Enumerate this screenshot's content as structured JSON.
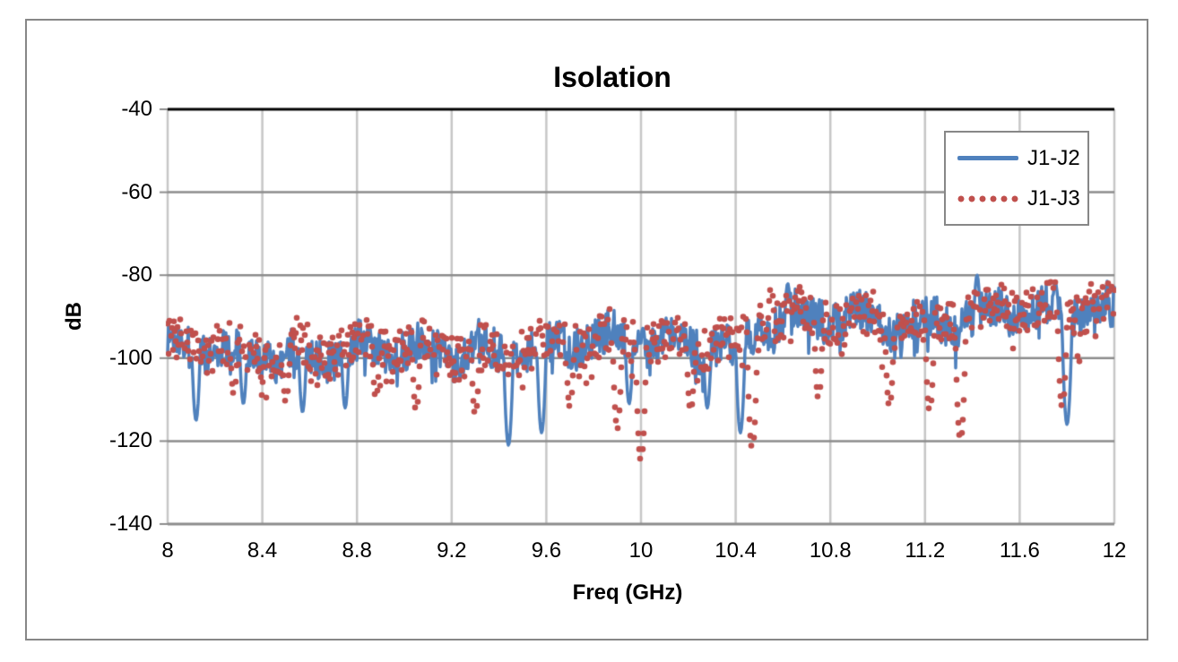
{
  "window": {
    "background_color": "#ffffff",
    "frame_border_color": "#878787"
  },
  "chart_data": {
    "type": "line",
    "title": "Isolation",
    "xlabel": "Freq (GHz)",
    "ylabel": "dB",
    "xlim": [
      8,
      12
    ],
    "ylim": [
      -140,
      -40
    ],
    "xtick_values": [
      8,
      8.4,
      8.8,
      9.2,
      9.6,
      10,
      10.4,
      10.8,
      11.2,
      11.6,
      12
    ],
    "xtick_labels": [
      "8",
      "8.4",
      "8.8",
      "9.2",
      "9.6",
      "10",
      "10.4",
      "10.8",
      "11.2",
      "11.6",
      "12"
    ],
    "ytick_values": [
      -40,
      -60,
      -80,
      -100,
      -120,
      -140
    ],
    "ytick_labels": [
      "-40",
      "-60",
      "-80",
      "-100",
      "-120",
      "-140"
    ],
    "grid": true,
    "grid_color_horizontal": "#8c8c8c",
    "grid_color_vertical": "#c6c6c6",
    "plot_top_border_color": "#000000",
    "legend": {
      "position": "top-right",
      "entries": [
        "J1-J2",
        "J1-J3"
      ]
    },
    "series": [
      {
        "name": "J1-J2",
        "color": "#4F81BD",
        "line_style": "solid",
        "description": "Very noisy isolation trace; fluctuates roughly between -90 and -107 dB below 10.5 GHz, stepping up to roughly -82 to -100 dB above 10.5 GHz, with narrow downward spikes.",
        "mean_profile_db": [
          [
            8,
            -98.5
          ],
          [
            9,
            -98.5
          ],
          [
            9.6,
            -97.5
          ],
          [
            10.1,
            -96
          ],
          [
            10.47,
            -95.2
          ],
          [
            10.5,
            -91.5
          ],
          [
            11,
            -90.5
          ],
          [
            11.5,
            -90
          ],
          [
            12,
            -88
          ]
        ],
        "noise_peak_to_peak_db": 14,
        "dips": [
          [
            8.12,
            -115
          ],
          [
            8.32,
            -111
          ],
          [
            8.57,
            -113
          ],
          [
            8.75,
            -112
          ],
          [
            9.44,
            -121
          ],
          [
            9.58,
            -118
          ],
          [
            9.95,
            -111
          ],
          [
            10.28,
            -112
          ],
          [
            10.42,
            -118
          ],
          [
            11.8,
            -116
          ]
        ],
        "peaks": [
          [
            10.62,
            -82
          ],
          [
            11.42,
            -80
          ],
          [
            11.75,
            -81.5
          ]
        ]
      },
      {
        "name": "J1-J3",
        "color": "#C0504D",
        "line_style": "dotted",
        "description": "Very noisy isolation trace drawn as round dots; similar level to J1-J2 with deep narrow dips near 10.0 GHz (-125 dB), 10.47 GHz (-122 dB) and 11.35 GHz (-120 dB).",
        "mean_profile_db": [
          [
            8,
            -98
          ],
          [
            9,
            -98
          ],
          [
            9.6,
            -97
          ],
          [
            10.1,
            -95.5
          ],
          [
            10.47,
            -94.5
          ],
          [
            10.5,
            -91
          ],
          [
            11,
            -90.5
          ],
          [
            11.5,
            -89.5
          ],
          [
            12,
            -87.5
          ]
        ],
        "noise_peak_to_peak_db": 14,
        "dips": [
          [
            8.28,
            -109
          ],
          [
            8.5,
            -111
          ],
          [
            8.88,
            -110
          ],
          [
            9.05,
            -113
          ],
          [
            9.3,
            -114
          ],
          [
            9.7,
            -112
          ],
          [
            9.9,
            -117
          ],
          [
            10.0,
            -125
          ],
          [
            10.21,
            -113
          ],
          [
            10.47,
            -122
          ],
          [
            10.75,
            -110
          ],
          [
            11.05,
            -112
          ],
          [
            11.22,
            -113
          ],
          [
            11.35,
            -120
          ],
          [
            11.78,
            -112
          ]
        ],
        "peaks": [
          [
            10.55,
            -82.5
          ],
          [
            11.9,
            -82
          ]
        ]
      }
    ]
  }
}
